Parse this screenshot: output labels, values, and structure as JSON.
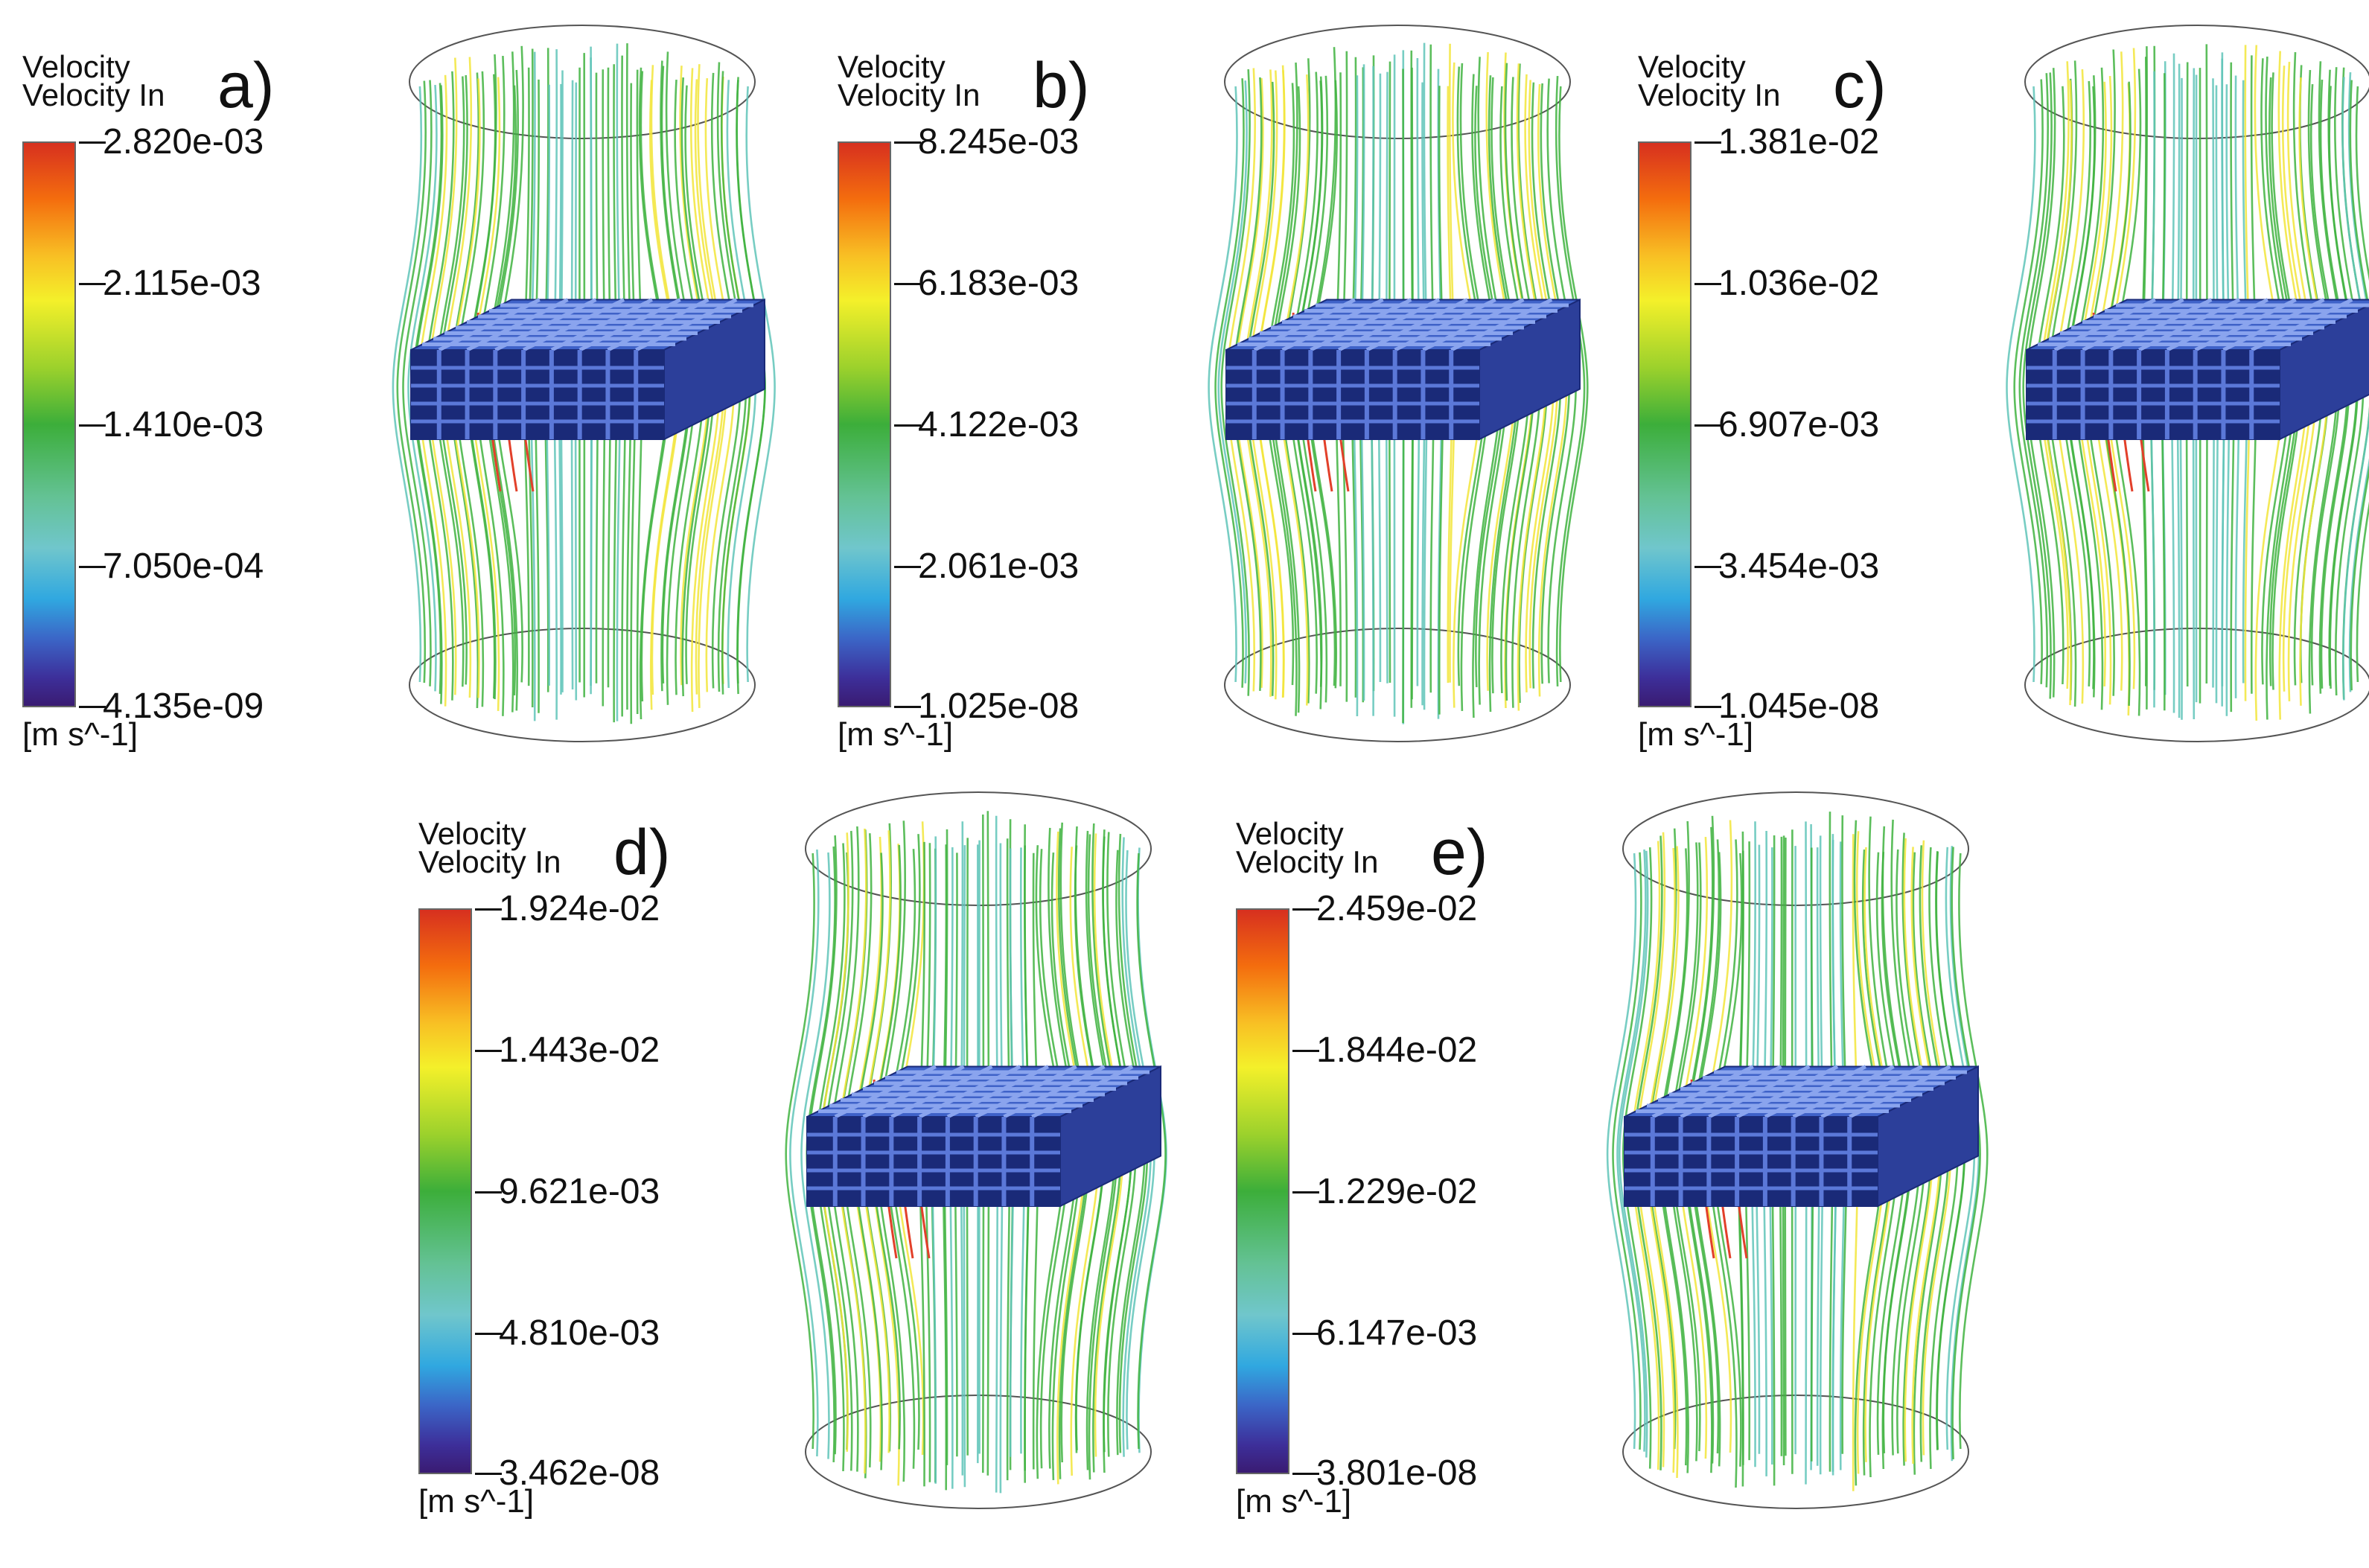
{
  "panels": [
    {
      "letter": "a)",
      "title": "Velocity",
      "subtitle": "Velocity In",
      "ticks": [
        "2.820e-03",
        "2.115e-03",
        "1.410e-03",
        "7.050e-04",
        "4.135e-09"
      ],
      "unit": "[m s^-1]"
    },
    {
      "letter": "b)",
      "title": "Velocity",
      "subtitle": "Velocity In",
      "ticks": [
        "8.245e-03",
        "6.183e-03",
        "4.122e-03",
        "2.061e-03",
        "1.025e-08"
      ],
      "unit": "[m s^-1]"
    },
    {
      "letter": "c)",
      "title": "Velocity",
      "subtitle": "Velocity In",
      "ticks": [
        "1.381e-02",
        "1.036e-02",
        "6.907e-03",
        "3.454e-03",
        "1.045e-08"
      ],
      "unit": "[m s^-1]"
    },
    {
      "letter": "d)",
      "title": "Velocity",
      "subtitle": "Velocity In",
      "ticks": [
        "1.924e-02",
        "1.443e-02",
        "9.621e-03",
        "4.810e-03",
        "3.462e-08"
      ],
      "unit": "[m s^-1]"
    },
    {
      "letter": "e)",
      "title": "Velocity",
      "subtitle": "Velocity In",
      "ticks": [
        "2.459e-02",
        "1.844e-02",
        "1.229e-02",
        "6.147e-03",
        "3.801e-08"
      ],
      "unit": "[m s^-1]"
    }
  ],
  "colors": {
    "stream_low": "#5fc4b8",
    "stream_mid": "#3fb33f",
    "stream_high": "#f2e53a",
    "stream_peak": "#e2402a",
    "lattice_face": "#3f62c8",
    "lattice_dark": "#1a2a78",
    "ellipse": "#555555"
  }
}
